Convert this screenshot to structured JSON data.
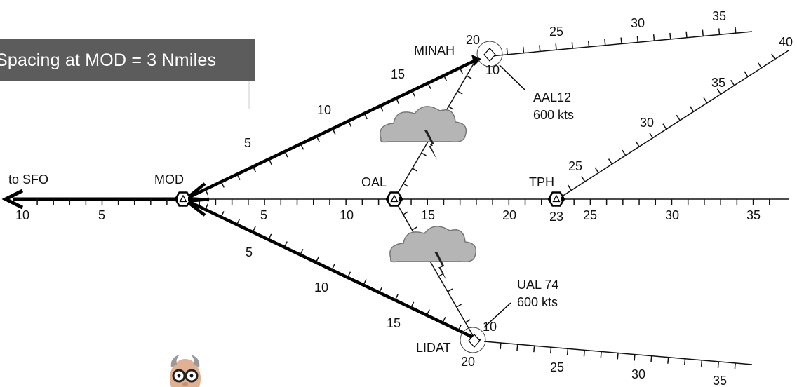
{
  "banner": {
    "text": "Spacing at MOD = 3 Nmiles"
  },
  "fixes": {
    "mod": "MOD",
    "oal": "OAL",
    "tph": "TPH",
    "minah": "MINAH",
    "lidat": "LIDAT"
  },
  "destination": "to SFO",
  "aircraft": {
    "aal": {
      "callsign": "AAL12",
      "speed": "600 kts"
    },
    "ual": {
      "callsign": "UAL 74",
      "speed": "600 kts"
    }
  },
  "mile_labels": {
    "west": [
      "10",
      "5"
    ],
    "main": [
      "5",
      "10",
      "15",
      "20",
      "23",
      "25",
      "30",
      "35"
    ],
    "upper_leg": [
      "5",
      "10",
      "15",
      "20"
    ],
    "lower_leg": [
      "5",
      "10",
      "15",
      "20"
    ],
    "upper_right": [
      "25",
      "30",
      "35"
    ],
    "tph_branch": [
      "25",
      "30",
      "35",
      "40"
    ],
    "lower_right": [
      "25",
      "30",
      "35"
    ],
    "aircraft_ten": [
      "10",
      "10"
    ]
  },
  "icons": [
    "vortac-icon",
    "storm-cloud-icon",
    "lightning-icon",
    "aircraft-diamond-icon",
    "controller-avatar-icon"
  ]
}
